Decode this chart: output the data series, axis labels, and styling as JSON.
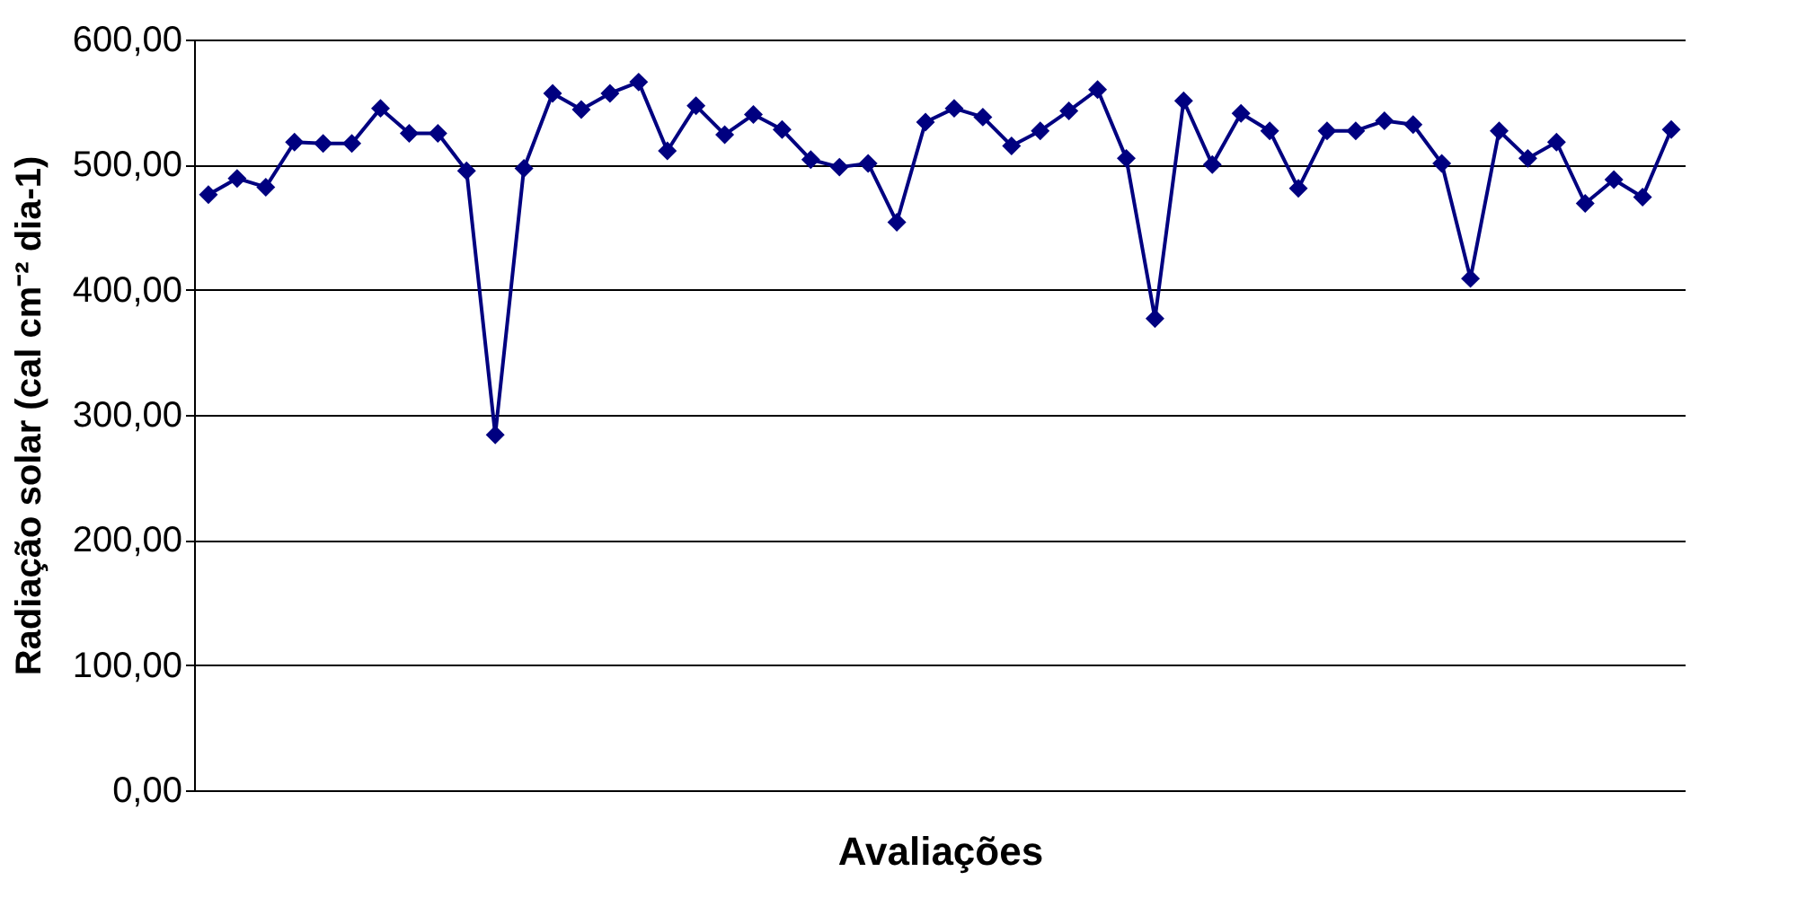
{
  "chart_data": {
    "type": "line",
    "xlabel": "Avaliações",
    "ylabel": "Radiação solar (cal cm⁻² dia-1)",
    "categories": [
      null,
      null,
      null,
      null,
      null,
      null,
      null,
      null,
      null,
      null,
      null,
      null,
      null,
      null,
      null,
      null,
      null,
      null,
      null,
      null,
      null,
      null,
      null,
      null,
      null,
      null,
      null,
      null,
      null,
      null,
      null,
      null,
      null,
      null,
      null,
      null,
      null,
      null,
      null,
      null,
      null,
      null,
      null,
      null,
      null,
      null,
      null,
      null,
      null,
      null,
      null,
      null
    ],
    "series": [
      {
        "color": "#000080",
        "values": [
          476,
          489,
          482,
          518,
          517,
          517,
          545,
          525,
          525,
          495,
          284,
          497,
          557,
          544,
          557,
          566,
          511,
          547,
          524,
          540,
          528,
          504,
          498,
          501,
          454,
          534,
          545,
          538,
          515,
          527,
          543,
          560,
          505,
          377,
          551,
          500,
          541,
          527,
          481,
          527,
          527,
          535,
          532,
          501,
          409,
          527,
          505,
          518,
          469,
          488,
          474,
          528
        ]
      }
    ],
    "ylim": [
      0,
      600
    ],
    "yticks": [
      {
        "value": 0,
        "label": "0,00"
      },
      {
        "value": 100,
        "label": "100,00"
      },
      {
        "value": 200,
        "label": "200,00"
      },
      {
        "value": 300,
        "label": "300,00"
      },
      {
        "value": 400,
        "label": "400,00"
      },
      {
        "value": 500,
        "label": "500,00"
      },
      {
        "value": 600,
        "label": "600,00"
      }
    ],
    "grid": "y",
    "marker": "diamond",
    "line_style": "solid",
    "tick_labels": "y"
  }
}
